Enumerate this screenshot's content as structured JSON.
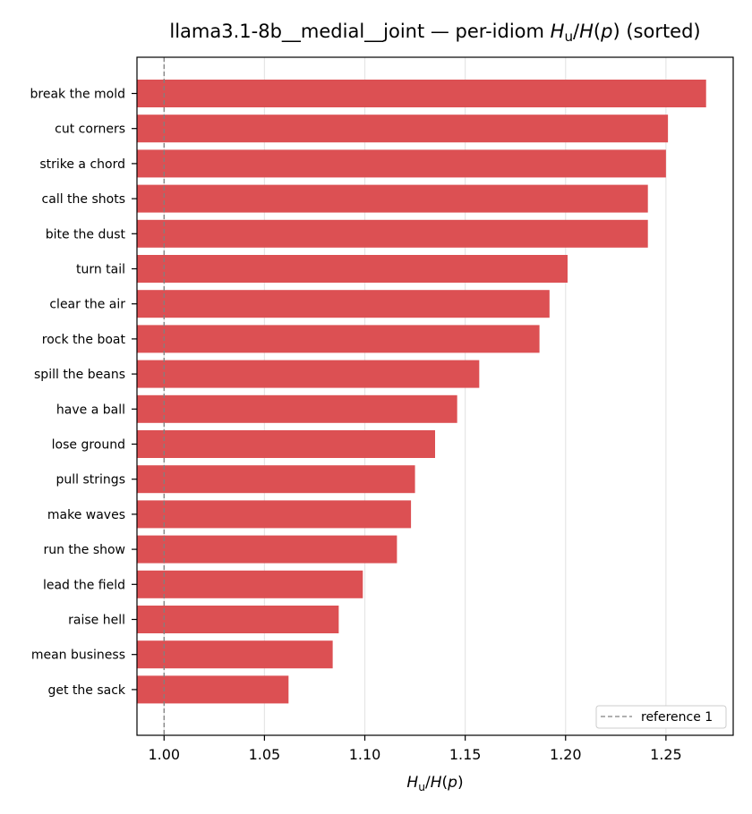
{
  "chart_data": {
    "type": "bar",
    "orientation": "horizontal",
    "title_prefix": "llama3.1-8b__medial__joint — per-idiom ",
    "title_suffix": " (sorted)",
    "xlabel_math": "H_u/H(p)",
    "categories": [
      "break the mold",
      "cut corners",
      "strike a chord",
      "call the shots",
      "bite the dust",
      "turn tail",
      "clear the air",
      "rock the boat",
      "spill the beans",
      "have a ball",
      "lose ground",
      "pull strings",
      "make waves",
      "run the show",
      "lead the field",
      "raise hell",
      "mean business",
      "get the sack"
    ],
    "values": [
      1.27,
      1.251,
      1.25,
      1.241,
      1.241,
      1.201,
      1.192,
      1.187,
      1.157,
      1.146,
      1.135,
      1.125,
      1.123,
      1.116,
      1.099,
      1.087,
      1.084,
      1.062
    ],
    "xlim": [
      0.9865,
      1.2835
    ],
    "xticks": [
      1.0,
      1.05,
      1.1,
      1.15,
      1.2,
      1.25
    ],
    "xtick_labels": [
      "1.00",
      "1.05",
      "1.10",
      "1.15",
      "1.20",
      "1.25"
    ],
    "reference_line": {
      "x": 1.0,
      "label": "reference 1",
      "color": "#808080",
      "style": "dashed"
    },
    "bar_color": "#dc5053",
    "grid": "vertical",
    "legend_position": "lower right"
  }
}
